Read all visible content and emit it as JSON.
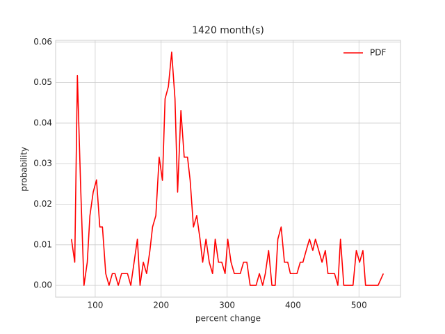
{
  "chart_data": {
    "type": "line",
    "title": "1420 month(s)",
    "x_label": "percent change",
    "y_label": "probability",
    "x": [
      64,
      69,
      73,
      78,
      83,
      88,
      92,
      97,
      102,
      107,
      111,
      116,
      121,
      126,
      130,
      135,
      140,
      145,
      149,
      154,
      159,
      164,
      168,
      173,
      178,
      183,
      187,
      192,
      197,
      202,
      206,
      211,
      216,
      221,
      225,
      230,
      235,
      240,
      244,
      249,
      254,
      259,
      263,
      268,
      273,
      278,
      282,
      287,
      292,
      297,
      301,
      306,
      311,
      316,
      320,
      325,
      330,
      335,
      339,
      344,
      349,
      354,
      358,
      363,
      368,
      373,
      377,
      382,
      387,
      392,
      396,
      401,
      406,
      411,
      415,
      420,
      425,
      430,
      434,
      439,
      444,
      449,
      453,
      458,
      463,
      468,
      472,
      477,
      482,
      487,
      491,
      496,
      501,
      506,
      510,
      515,
      520,
      525,
      529,
      537
    ],
    "series": [
      {
        "name": "PDF",
        "color": "#ff0000",
        "values": [
          0.0114,
          0.0057,
          0.0517,
          0.024,
          0,
          0.0057,
          0.0172,
          0.023,
          0.026,
          0.0144,
          0.0144,
          0.0029,
          0,
          0.0029,
          0.0029,
          0,
          0.0029,
          0.0029,
          0.0029,
          0,
          0.0057,
          0.0114,
          0,
          0.0057,
          0.0029,
          0.0086,
          0.0144,
          0.0172,
          0.0316,
          0.0259,
          0.046,
          0.049,
          0.0575,
          0.046,
          0.023,
          0.0431,
          0.0316,
          0.0316,
          0.0259,
          0.0144,
          0.0172,
          0.0114,
          0.0057,
          0.0114,
          0.0057,
          0.0029,
          0.0114,
          0.0057,
          0.0057,
          0.0029,
          0.0114,
          0.0057,
          0.0029,
          0.0029,
          0.0029,
          0.0057,
          0.0057,
          0,
          0,
          0,
          0.0029,
          0,
          0.0029,
          0.0086,
          0,
          0,
          0.0114,
          0.0144,
          0.0057,
          0.0057,
          0.0029,
          0.0029,
          0.0029,
          0.0057,
          0.0057,
          0.0086,
          0.0114,
          0.0086,
          0.0114,
          0.0086,
          0.0057,
          0.0086,
          0.0029,
          0.0029,
          0.0029,
          0,
          0.0114,
          0,
          0,
          0,
          0,
          0.0086,
          0.0057,
          0.0086,
          0,
          0,
          0,
          0,
          0,
          0.0029
        ]
      }
    ],
    "xlim": [
      40,
      563
    ],
    "ylim": [
      -0.0029,
      0.0604
    ],
    "xticks": [
      100,
      200,
      300,
      400,
      500
    ],
    "yticks": [
      {
        "value": 0,
        "label": "0.00"
      },
      {
        "value": 0.01,
        "label": "0.01"
      },
      {
        "value": 0.02,
        "label": "0.02"
      },
      {
        "value": 0.03,
        "label": "0.03"
      },
      {
        "value": 0.04,
        "label": "0.04"
      },
      {
        "value": 0.05,
        "label": "0.05"
      },
      {
        "value": 0.06,
        "label": "0.06"
      }
    ],
    "grid": true,
    "legend": "upper right"
  }
}
